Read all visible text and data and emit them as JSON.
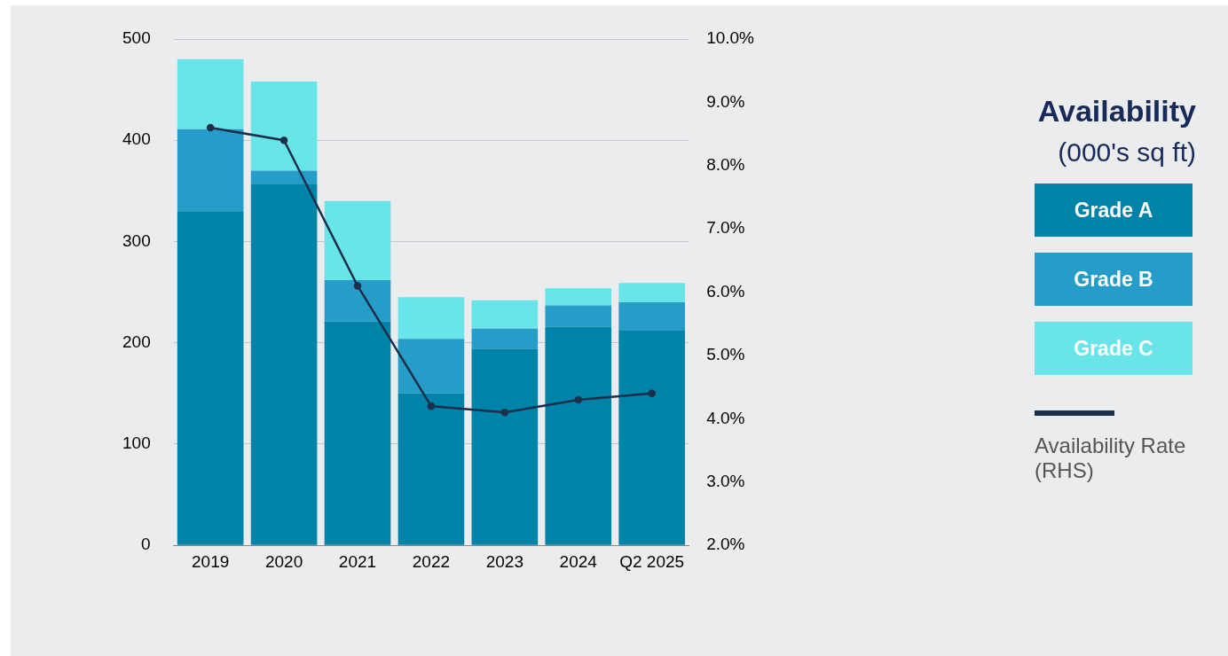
{
  "chart_data": {
    "type": "bar",
    "title": "Availability",
    "subtitle": "(000's sq ft)",
    "categories": [
      "2019",
      "2020",
      "2021",
      "2022",
      "2023",
      "2024",
      "Q2 2025"
    ],
    "series": [
      {
        "name": "Grade A",
        "color": "#0083a8",
        "values": [
          330,
          357,
          221,
          150,
          194,
          216,
          212
        ]
      },
      {
        "name": "Grade B",
        "color": "#269cc8",
        "values": [
          81,
          13,
          41,
          54,
          20,
          21,
          28
        ]
      },
      {
        "name": "Grade C",
        "color": "#69e4e8",
        "values": [
          69,
          88,
          78,
          41,
          28,
          17,
          19
        ]
      },
      {
        "name": "Availability Rate (RHS)",
        "type": "line",
        "axis": "y2",
        "color": "#1b2f4b",
        "values": [
          8.6,
          8.4,
          6.1,
          4.2,
          4.1,
          4.3,
          4.4
        ]
      }
    ],
    "stacked": true,
    "ylim": [
      0,
      500
    ],
    "yticks": [
      0,
      100,
      200,
      300,
      400,
      500
    ],
    "y2lim": [
      2,
      10
    ],
    "y2ticks": [
      {
        "value": 2,
        "label": "2.0%"
      },
      {
        "value": 3,
        "label": "3.0%"
      },
      {
        "value": 4,
        "label": "4.0%"
      },
      {
        "value": 5,
        "label": "5.0%"
      },
      {
        "value": 6,
        "label": "6.0%"
      },
      {
        "value": 7,
        "label": "7.0%"
      },
      {
        "value": 8,
        "label": "8.0%"
      },
      {
        "value": 9,
        "label": "9.0%"
      },
      {
        "value": 10,
        "label": "10.0%"
      }
    ],
    "grid": "y",
    "legend": "right",
    "marker": "circle"
  }
}
